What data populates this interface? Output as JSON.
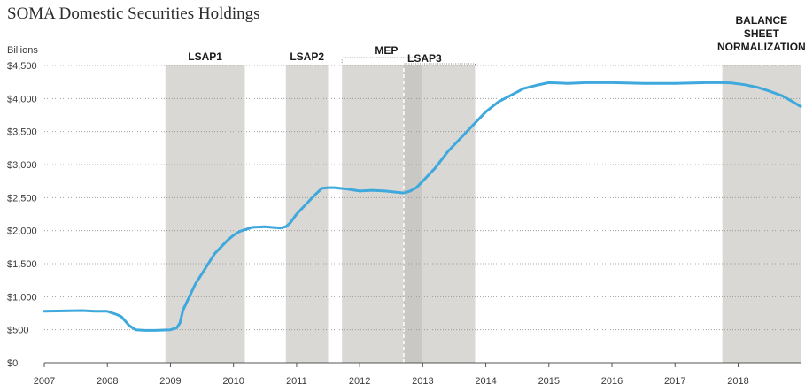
{
  "chart_data": {
    "type": "line",
    "title": "SOMA Domestic Securities Holdings",
    "ylabel": "Billions",
    "xlabel": "",
    "xlim": [
      2007.0,
      2018.99
    ],
    "ylim": [
      0,
      4500
    ],
    "grid": "horizontal",
    "line_color": "#3fa8dd",
    "band_color": "#d9d8d4",
    "overlap_color": "#c9c8c4",
    "x_ticks": [
      {
        "value": 2007,
        "label": "2007"
      },
      {
        "value": 2008,
        "label": "2008"
      },
      {
        "value": 2009,
        "label": "2009"
      },
      {
        "value": 2010,
        "label": "2010"
      },
      {
        "value": 2011,
        "label": "2011"
      },
      {
        "value": 2012,
        "label": "2012"
      },
      {
        "value": 2013,
        "label": "2013"
      },
      {
        "value": 2014,
        "label": "2014"
      },
      {
        "value": 2015,
        "label": "2015"
      },
      {
        "value": 2016,
        "label": "2016"
      },
      {
        "value": 2017,
        "label": "2017"
      },
      {
        "value": 2018,
        "label": "2018"
      }
    ],
    "y_ticks": [
      {
        "value": 0,
        "label": "$0"
      },
      {
        "value": 500,
        "label": "$500"
      },
      {
        "value": 1000,
        "label": "$1,000"
      },
      {
        "value": 1500,
        "label": "$1,500"
      },
      {
        "value": 2000,
        "label": "$2,000"
      },
      {
        "value": 2500,
        "label": "$2,500"
      },
      {
        "value": 3000,
        "label": "$3,000"
      },
      {
        "value": 3500,
        "label": "$3,500"
      },
      {
        "value": 4000,
        "label": "$4,000"
      },
      {
        "value": 4500,
        "label": "$4,500"
      }
    ],
    "bands": [
      {
        "id": "lsap1",
        "label": "LSAP1",
        "start": 2008.92,
        "end": 2010.18
      },
      {
        "id": "lsap2",
        "label": "LSAP2",
        "start": 2010.83,
        "end": 2011.5
      },
      {
        "id": "mep",
        "label": "MEP",
        "start": 2011.72,
        "end": 2012.99
      },
      {
        "id": "lsap3",
        "label": "LSAP3",
        "start": 2012.7,
        "end": 2013.83
      },
      {
        "id": "normalization",
        "label_lines": [
          "BALANCE",
          "SHEET",
          "NORMALIZATION"
        ],
        "start": 2017.75,
        "end": 2018.99
      }
    ],
    "series": [
      {
        "x": [
          2007.0,
          2007.3,
          2007.6,
          2007.8,
          2008.0,
          2008.15,
          2008.22,
          2008.35,
          2008.45,
          2008.6,
          2008.75,
          2008.9,
          2009.0,
          2009.1,
          2009.15,
          2009.2,
          2009.3,
          2009.4,
          2009.5,
          2009.6,
          2009.7,
          2009.8,
          2009.9,
          2010.0,
          2010.1,
          2010.2,
          2010.3,
          2010.5,
          2010.6,
          2010.75,
          2010.83,
          2010.9,
          2011.0,
          2011.1,
          2011.2,
          2011.3,
          2011.4,
          2011.5,
          2011.6,
          2011.8,
          2012.0,
          2012.2,
          2012.4,
          2012.6,
          2012.7,
          2012.8,
          2012.9,
          2013.0,
          2013.2,
          2013.4,
          2013.6,
          2013.8,
          2014.0,
          2014.2,
          2014.4,
          2014.6,
          2014.8,
          2015.0,
          2015.3,
          2015.6,
          2016.0,
          2016.5,
          2017.0,
          2017.5,
          2017.75,
          2017.9,
          2018.1,
          2018.3,
          2018.5,
          2018.7,
          2018.85,
          2018.99
        ],
        "y": [
          780,
          785,
          790,
          780,
          780,
          730,
          700,
          560,
          500,
          490,
          490,
          495,
          500,
          530,
          600,
          800,
          1000,
          1200,
          1350,
          1500,
          1650,
          1750,
          1850,
          1930,
          1990,
          2020,
          2050,
          2060,
          2050,
          2040,
          2060,
          2120,
          2250,
          2350,
          2450,
          2550,
          2640,
          2650,
          2650,
          2630,
          2600,
          2610,
          2600,
          2580,
          2570,
          2600,
          2650,
          2750,
          2950,
          3200,
          3400,
          3600,
          3800,
          3950,
          4050,
          4150,
          4200,
          4240,
          4230,
          4240,
          4240,
          4230,
          4230,
          4240,
          4240,
          4235,
          4210,
          4170,
          4110,
          4040,
          3960,
          3880
        ]
      }
    ]
  }
}
